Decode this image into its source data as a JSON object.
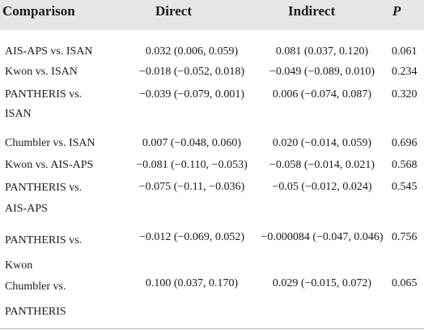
{
  "headers": {
    "comparison": "Comparison",
    "direct": "Direct",
    "indirect": "Indirect",
    "p": "P"
  },
  "rows": [
    {
      "comparison": "AIS-APS vs. ISAN",
      "direct": "0.032 (0.006, 0.059)",
      "indirect": "0.081 (0.037, 0.120)",
      "p": "0.061"
    },
    {
      "comparison": "Kwon vs. ISAN",
      "direct": "−0.018 (−0.052, 0.018)",
      "indirect": "−0.049 (−0.089, 0.010)",
      "p": "0.234"
    },
    {
      "comparison": "PANTHERIS vs. ISAN",
      "direct": "−0.039 (−0.079, 0.001)",
      "indirect": "0.006 (−0.074, 0.087)",
      "p": "0.320"
    },
    {
      "comparison": "Chumbler vs. ISAN",
      "direct": "0.007 (−0.048, 0.060)",
      "indirect": "0.020 (−0.014, 0.059)",
      "p": "0.696"
    },
    {
      "comparison": "Kwon vs. AIS-APS",
      "direct": "−0.081 (−0.110, −0.053)",
      "indirect": "−0.058 (−0.014, 0.021)",
      "p": "0.568"
    },
    {
      "comparison": "PANTHERIS vs. AIS-APS",
      "direct": "−0.075 (−0.11, −0.036)",
      "indirect": "−0.05 (−0.012, 0.024)",
      "p": "0.545"
    },
    {
      "comparison": "PANTHERIS vs. Kwon",
      "direct": "−0.012 (−0.069, 0.052)",
      "indirect": "−0.000084 (−0.047, 0.046)",
      "p": "0.756"
    },
    {
      "comparison": "Chumbler vs. PANTHERIS",
      "direct": "0.100 (0.037, 0.170)",
      "indirect": "0.029 (−0.015, 0.072)",
      "p": "0.065"
    }
  ]
}
